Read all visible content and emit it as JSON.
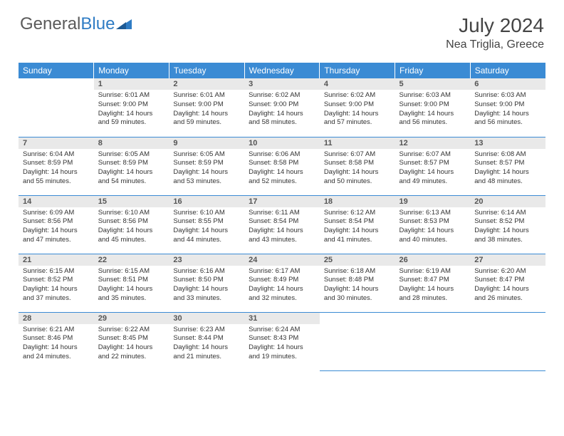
{
  "logo": {
    "text1": "General",
    "text2": "Blue"
  },
  "title": "July 2024",
  "location": "Nea Triglia, Greece",
  "colors": {
    "header_bg": "#3b8bd4",
    "header_text": "#ffffff",
    "daynum_bg": "#e9e9e9",
    "border": "#3b8bd4",
    "logo_accent": "#2f7cc4"
  },
  "weekdays": [
    "Sunday",
    "Monday",
    "Tuesday",
    "Wednesday",
    "Thursday",
    "Friday",
    "Saturday"
  ],
  "weeks": [
    [
      {
        "n": "",
        "sr": "",
        "ss": "",
        "dl": ""
      },
      {
        "n": "1",
        "sr": "Sunrise: 6:01 AM",
        "ss": "Sunset: 9:00 PM",
        "dl": "Daylight: 14 hours and 59 minutes."
      },
      {
        "n": "2",
        "sr": "Sunrise: 6:01 AM",
        "ss": "Sunset: 9:00 PM",
        "dl": "Daylight: 14 hours and 59 minutes."
      },
      {
        "n": "3",
        "sr": "Sunrise: 6:02 AM",
        "ss": "Sunset: 9:00 PM",
        "dl": "Daylight: 14 hours and 58 minutes."
      },
      {
        "n": "4",
        "sr": "Sunrise: 6:02 AM",
        "ss": "Sunset: 9:00 PM",
        "dl": "Daylight: 14 hours and 57 minutes."
      },
      {
        "n": "5",
        "sr": "Sunrise: 6:03 AM",
        "ss": "Sunset: 9:00 PM",
        "dl": "Daylight: 14 hours and 56 minutes."
      },
      {
        "n": "6",
        "sr": "Sunrise: 6:03 AM",
        "ss": "Sunset: 9:00 PM",
        "dl": "Daylight: 14 hours and 56 minutes."
      }
    ],
    [
      {
        "n": "7",
        "sr": "Sunrise: 6:04 AM",
        "ss": "Sunset: 8:59 PM",
        "dl": "Daylight: 14 hours and 55 minutes."
      },
      {
        "n": "8",
        "sr": "Sunrise: 6:05 AM",
        "ss": "Sunset: 8:59 PM",
        "dl": "Daylight: 14 hours and 54 minutes."
      },
      {
        "n": "9",
        "sr": "Sunrise: 6:05 AM",
        "ss": "Sunset: 8:59 PM",
        "dl": "Daylight: 14 hours and 53 minutes."
      },
      {
        "n": "10",
        "sr": "Sunrise: 6:06 AM",
        "ss": "Sunset: 8:58 PM",
        "dl": "Daylight: 14 hours and 52 minutes."
      },
      {
        "n": "11",
        "sr": "Sunrise: 6:07 AM",
        "ss": "Sunset: 8:58 PM",
        "dl": "Daylight: 14 hours and 50 minutes."
      },
      {
        "n": "12",
        "sr": "Sunrise: 6:07 AM",
        "ss": "Sunset: 8:57 PM",
        "dl": "Daylight: 14 hours and 49 minutes."
      },
      {
        "n": "13",
        "sr": "Sunrise: 6:08 AM",
        "ss": "Sunset: 8:57 PM",
        "dl": "Daylight: 14 hours and 48 minutes."
      }
    ],
    [
      {
        "n": "14",
        "sr": "Sunrise: 6:09 AM",
        "ss": "Sunset: 8:56 PM",
        "dl": "Daylight: 14 hours and 47 minutes."
      },
      {
        "n": "15",
        "sr": "Sunrise: 6:10 AM",
        "ss": "Sunset: 8:56 PM",
        "dl": "Daylight: 14 hours and 45 minutes."
      },
      {
        "n": "16",
        "sr": "Sunrise: 6:10 AM",
        "ss": "Sunset: 8:55 PM",
        "dl": "Daylight: 14 hours and 44 minutes."
      },
      {
        "n": "17",
        "sr": "Sunrise: 6:11 AM",
        "ss": "Sunset: 8:54 PM",
        "dl": "Daylight: 14 hours and 43 minutes."
      },
      {
        "n": "18",
        "sr": "Sunrise: 6:12 AM",
        "ss": "Sunset: 8:54 PM",
        "dl": "Daylight: 14 hours and 41 minutes."
      },
      {
        "n": "19",
        "sr": "Sunrise: 6:13 AM",
        "ss": "Sunset: 8:53 PM",
        "dl": "Daylight: 14 hours and 40 minutes."
      },
      {
        "n": "20",
        "sr": "Sunrise: 6:14 AM",
        "ss": "Sunset: 8:52 PM",
        "dl": "Daylight: 14 hours and 38 minutes."
      }
    ],
    [
      {
        "n": "21",
        "sr": "Sunrise: 6:15 AM",
        "ss": "Sunset: 8:52 PM",
        "dl": "Daylight: 14 hours and 37 minutes."
      },
      {
        "n": "22",
        "sr": "Sunrise: 6:15 AM",
        "ss": "Sunset: 8:51 PM",
        "dl": "Daylight: 14 hours and 35 minutes."
      },
      {
        "n": "23",
        "sr": "Sunrise: 6:16 AM",
        "ss": "Sunset: 8:50 PM",
        "dl": "Daylight: 14 hours and 33 minutes."
      },
      {
        "n": "24",
        "sr": "Sunrise: 6:17 AM",
        "ss": "Sunset: 8:49 PM",
        "dl": "Daylight: 14 hours and 32 minutes."
      },
      {
        "n": "25",
        "sr": "Sunrise: 6:18 AM",
        "ss": "Sunset: 8:48 PM",
        "dl": "Daylight: 14 hours and 30 minutes."
      },
      {
        "n": "26",
        "sr": "Sunrise: 6:19 AM",
        "ss": "Sunset: 8:47 PM",
        "dl": "Daylight: 14 hours and 28 minutes."
      },
      {
        "n": "27",
        "sr": "Sunrise: 6:20 AM",
        "ss": "Sunset: 8:47 PM",
        "dl": "Daylight: 14 hours and 26 minutes."
      }
    ],
    [
      {
        "n": "28",
        "sr": "Sunrise: 6:21 AM",
        "ss": "Sunset: 8:46 PM",
        "dl": "Daylight: 14 hours and 24 minutes."
      },
      {
        "n": "29",
        "sr": "Sunrise: 6:22 AM",
        "ss": "Sunset: 8:45 PM",
        "dl": "Daylight: 14 hours and 22 minutes."
      },
      {
        "n": "30",
        "sr": "Sunrise: 6:23 AM",
        "ss": "Sunset: 8:44 PM",
        "dl": "Daylight: 14 hours and 21 minutes."
      },
      {
        "n": "31",
        "sr": "Sunrise: 6:24 AM",
        "ss": "Sunset: 8:43 PM",
        "dl": "Daylight: 14 hours and 19 minutes."
      },
      {
        "n": "",
        "sr": "",
        "ss": "",
        "dl": ""
      },
      {
        "n": "",
        "sr": "",
        "ss": "",
        "dl": ""
      },
      {
        "n": "",
        "sr": "",
        "ss": "",
        "dl": ""
      }
    ]
  ]
}
